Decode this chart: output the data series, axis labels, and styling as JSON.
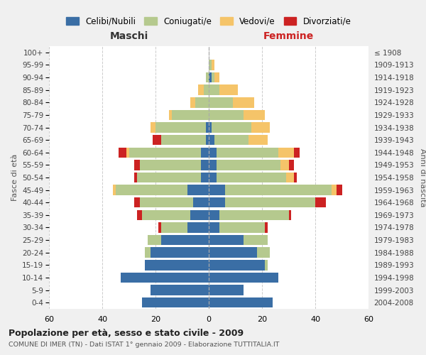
{
  "age_groups": [
    "0-4",
    "5-9",
    "10-14",
    "15-19",
    "20-24",
    "25-29",
    "30-34",
    "35-39",
    "40-44",
    "45-49",
    "50-54",
    "55-59",
    "60-64",
    "65-69",
    "70-74",
    "75-79",
    "80-84",
    "85-89",
    "90-94",
    "95-99",
    "100+"
  ],
  "birth_years": [
    "2004-2008",
    "1999-2003",
    "1994-1998",
    "1989-1993",
    "1984-1988",
    "1979-1983",
    "1974-1978",
    "1969-1973",
    "1964-1968",
    "1959-1963",
    "1954-1958",
    "1949-1953",
    "1944-1948",
    "1939-1943",
    "1934-1938",
    "1929-1933",
    "1924-1928",
    "1919-1923",
    "1914-1918",
    "1909-1913",
    "≤ 1908"
  ],
  "males": {
    "celibi": [
      25,
      22,
      33,
      24,
      22,
      18,
      8,
      7,
      6,
      8,
      3,
      3,
      3,
      1,
      1,
      0,
      0,
      0,
      0,
      0,
      0
    ],
    "coniugati": [
      0,
      0,
      0,
      0,
      2,
      5,
      10,
      18,
      20,
      27,
      24,
      23,
      27,
      17,
      19,
      14,
      5,
      2,
      1,
      0,
      0
    ],
    "vedovi": [
      0,
      0,
      0,
      0,
      0,
      0,
      0,
      0,
      0,
      1,
      0,
      0,
      1,
      0,
      2,
      1,
      2,
      2,
      0,
      0,
      0
    ],
    "divorziati": [
      0,
      0,
      0,
      0,
      0,
      0,
      1,
      2,
      2,
      0,
      1,
      2,
      3,
      3,
      0,
      0,
      0,
      0,
      0,
      0,
      0
    ]
  },
  "females": {
    "nubili": [
      24,
      13,
      26,
      21,
      18,
      13,
      4,
      4,
      6,
      6,
      3,
      3,
      3,
      2,
      1,
      0,
      0,
      0,
      1,
      0,
      0
    ],
    "coniugate": [
      0,
      0,
      0,
      1,
      5,
      9,
      17,
      26,
      34,
      40,
      26,
      24,
      23,
      13,
      15,
      13,
      9,
      4,
      1,
      1,
      0
    ],
    "vedove": [
      0,
      0,
      0,
      0,
      0,
      0,
      0,
      0,
      0,
      2,
      3,
      3,
      6,
      7,
      7,
      8,
      8,
      7,
      2,
      1,
      0
    ],
    "divorziate": [
      0,
      0,
      0,
      0,
      0,
      0,
      1,
      1,
      4,
      2,
      1,
      2,
      2,
      0,
      0,
      0,
      0,
      0,
      0,
      0,
      0
    ]
  },
  "colors": {
    "celibi": "#3a6ea5",
    "coniugati": "#b5c98e",
    "vedovi": "#f5c469",
    "divorziati": "#cc2222"
  },
  "xlim": 60,
  "title1": "Popolazione per età, sesso e stato civile - 2009",
  "title2": "COMUNE DI IMER (TN) - Dati ISTAT 1° gennaio 2009 - Elaborazione TUTTITALIA.IT",
  "xlabel_left": "Maschi",
  "xlabel_right": "Femmine",
  "ylabel_left": "Fasce di età",
  "ylabel_right": "Anni di nascita",
  "legend_labels": [
    "Celibi/Nubili",
    "Coniugati/e",
    "Vedovi/e",
    "Divorziati/e"
  ],
  "bg_color": "#f0f0f0",
  "plot_bg": "#ffffff",
  "grid_color": "#cccccc"
}
